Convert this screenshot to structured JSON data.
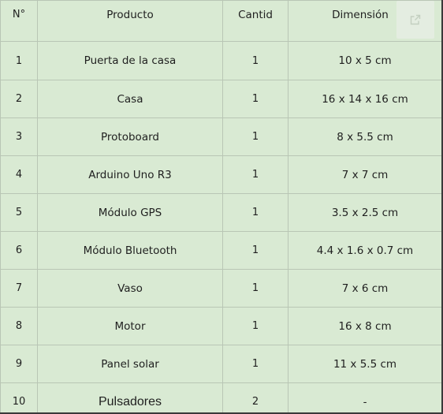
{
  "table": {
    "headers": {
      "number": "N°",
      "product": "Producto",
      "quantity": "Cantid",
      "dimension": "Dimensión"
    },
    "rows": [
      {
        "number": "1",
        "product": "Puerta de la casa",
        "quantity": "1",
        "dimension": "10 x 5 cm"
      },
      {
        "number": "2",
        "product": "Casa",
        "quantity": "1",
        "dimension": "16 x 14 x 16 cm"
      },
      {
        "number": "3",
        "product": "Protoboard",
        "quantity": "1",
        "dimension": "8 x 5.5 cm"
      },
      {
        "number": "4",
        "product": "Arduino Uno R3",
        "quantity": "1",
        "dimension": "7 x 7 cm"
      },
      {
        "number": "5",
        "product": "Módulo GPS",
        "quantity": "1",
        "dimension": "3.5 x 2.5 cm"
      },
      {
        "number": "6",
        "product": "Módulo Bluetooth",
        "quantity": "1",
        "dimension": "4.4 x 1.6 x 0.7 cm"
      },
      {
        "number": "7",
        "product": "Vaso",
        "quantity": "1",
        "dimension": "7 x 6 cm"
      },
      {
        "number": "8",
        "product": "Motor",
        "quantity": "1",
        "dimension": "16 x 8 cm"
      },
      {
        "number": "9",
        "product": "Panel solar",
        "quantity": "1",
        "dimension": "11 x 5.5 cm"
      },
      {
        "number": "10",
        "product": "Pulsadores",
        "quantity": "2",
        "dimension": "-"
      }
    ]
  },
  "colors": {
    "cell_background": "#d9ead3",
    "grid_line": "#b9c6b5",
    "outer_border": "#3a3a3a",
    "text": "#1f1f1f"
  },
  "icons": {
    "open_button": "open-in-new-icon"
  }
}
